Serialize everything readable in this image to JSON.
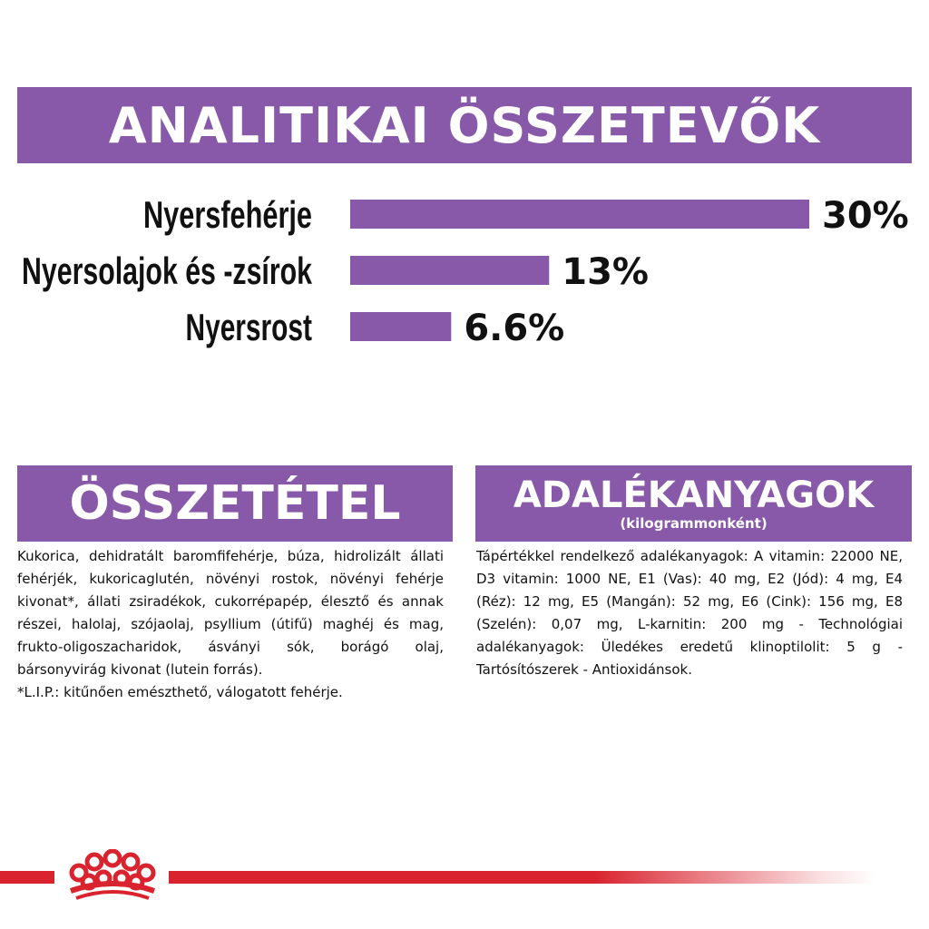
{
  "banner": {
    "title": "ANALITIKAI ÖSSZETEVŐK"
  },
  "colors": {
    "purple": "#8759a8",
    "red": "#d9232e",
    "text": "#111111"
  },
  "chart_data": {
    "type": "bar",
    "orientation": "horizontal",
    "categories": [
      "Nyersfehérje",
      "Nyersolajok és -zsírok",
      "Nyersrost"
    ],
    "values": [
      30,
      13,
      6.6
    ],
    "value_labels": [
      "30%",
      "13%",
      "6.6%"
    ],
    "unit": "%",
    "xlim": [
      0,
      30
    ],
    "grid": false,
    "legend": "none"
  },
  "composition": {
    "title": "ÖSSZETÉTEL",
    "text": "Kukorica, dehidratált baromfifehérje, búza, hidrolizált állati fehérjék, kukoricaglutén, növényi rostok, növényi fehérje kivonat*, állati zsiradékok, cukorrépapép, élesztő és annak részei, halolaj, szójaolaj, psyllium (útifű) maghéj és mag, frukto-oligoszacharidok, ásványi sók, borágó olaj, bársonyvirág kivonat (lutein forrás).",
    "footnote": "*L.I.P.: kitűnően emészthető, válogatott fehérje."
  },
  "additives": {
    "title": "ADALÉKANYAGOK",
    "subtitle": "(kilogrammonként)",
    "text": "Tápértékkel rendelkező adalékanyagok: A vitamin: 22000 NE, D3 vitamin: 1000 NE, E1 (Vas): 40 mg, E2 (Jód): 4 mg, E4 (Réz): 12 mg, E5 (Mangán): 52 mg, E6 (Cink): 156 mg, E8 (Szelén): 0,07 mg, L-karnitin: 200 mg - Technológiai adalékanyagok: Üledékes eredetű klinoptilolit: 5 g - Tartósítószerek - Antioxidánsok."
  },
  "footer": {
    "logo_icon": "crown-icon"
  }
}
